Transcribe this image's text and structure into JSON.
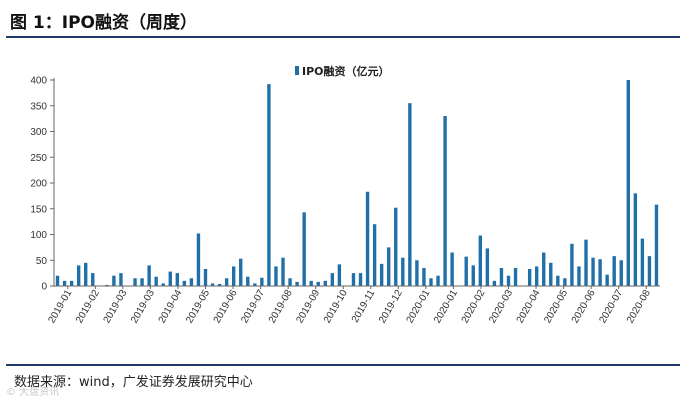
{
  "header": {
    "title": "图 1：IPO融资（周度）"
  },
  "footer": {
    "source": "数据来源：wind，广发证券发展研究中心",
    "watermark": "© 大盘资讯"
  },
  "colors": {
    "bar": "#1f6fa8",
    "rule": "#1f3a6b"
  },
  "chart_data": {
    "type": "bar",
    "legend_position": "top-center",
    "grid": false,
    "ylim": [
      0,
      400
    ],
    "yticks": [
      0,
      50,
      100,
      150,
      200,
      250,
      300,
      350,
      400
    ],
    "series": [
      {
        "name": "IPO融资（亿元）",
        "values": [
          20,
          10,
          10,
          40,
          45,
          25,
          0,
          2,
          20,
          25,
          0,
          15,
          15,
          40,
          18,
          5,
          28,
          25,
          10,
          15,
          102,
          33,
          5,
          4,
          15,
          38,
          53,
          18,
          5,
          16,
          392,
          38,
          55,
          15,
          8,
          143,
          10,
          8,
          10,
          25,
          42,
          0,
          25,
          25,
          183,
          120,
          43,
          75,
          152,
          55,
          355,
          50,
          35,
          15,
          20,
          330,
          65,
          0,
          57,
          40,
          98,
          73,
          10,
          35,
          20,
          35,
          0,
          33,
          38,
          65,
          45,
          20,
          15,
          82,
          38,
          90,
          55,
          52,
          22,
          58,
          50,
          400,
          180,
          92,
          58,
          158
        ]
      }
    ],
    "x_tick_labels": [
      "2019-01",
      "2019-02",
      "2019-03",
      "2019-03",
      "2019-04",
      "2019-05",
      "2019-06",
      "2019-07",
      "2019-08",
      "2019-09",
      "2019-10",
      "2019-11",
      "2019-12",
      "2020-01",
      "2020-01",
      "2020-02",
      "2020-03",
      "2020-04",
      "2020-05",
      "2020-06",
      "2020-07",
      "2020-08"
    ]
  }
}
